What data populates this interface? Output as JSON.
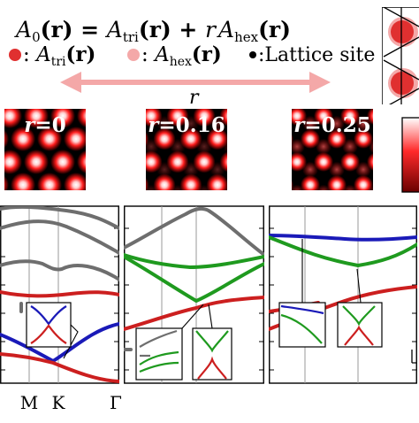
{
  "header": {
    "formula_lhs": "A",
    "formula_lhs_sub": "0",
    "formula_r_arg": "(r) = ",
    "formula_tri_A": "A",
    "formula_tri_sub": "tri",
    "formula_tri_arg": "(r) + ",
    "formula_coeff": "r",
    "formula_hex_A": "A",
    "formula_hex_sub": "hex",
    "formula_hex_arg": "(r)"
  },
  "legend": {
    "tri_A": "A",
    "tri_sub": "tri",
    "tri_arg": "(r)",
    "tri_prefix": ": ",
    "hex_A": "A",
    "hex_sub": "hex",
    "hex_arg": "(r)",
    "hex_prefix": ": ",
    "site_label": ":Lattice site",
    "colors": {
      "tri": "#e03030",
      "hex": "#f4a8a8",
      "site": "#000000"
    }
  },
  "arrow": {
    "label": "r",
    "color": "#f4a8a8"
  },
  "maps": [
    {
      "label_var": "r",
      "label_value": "=0"
    },
    {
      "label_var": "r",
      "label_value": "=0.16"
    },
    {
      "label_var": "r",
      "label_value": "=0.25"
    }
  ],
  "band_panels": {
    "xtick_labels": [
      "M",
      "K",
      "Γ"
    ],
    "colors": {
      "gray": "#6e6e6e",
      "red": "#cc1f1f",
      "blue": "#1a1ab8",
      "green": "#1f9a1f"
    }
  }
}
